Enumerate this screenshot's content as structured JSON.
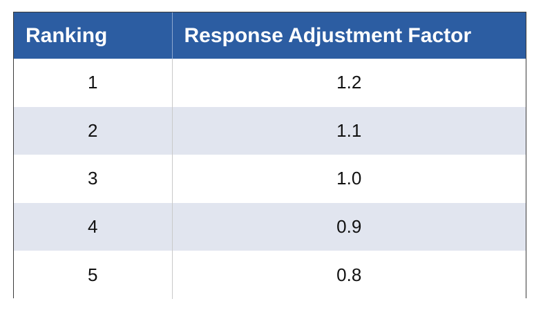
{
  "table": {
    "headers": [
      "Ranking",
      "Response Adjustment Factor"
    ],
    "rows": [
      [
        "1",
        "1.2"
      ],
      [
        "2",
        "1.1"
      ],
      [
        "3",
        "1.0"
      ],
      [
        "4",
        "0.9"
      ],
      [
        "5",
        "0.8"
      ]
    ]
  },
  "colors": {
    "header_bg": "#2c5da2",
    "header_text": "#ffffff",
    "stripe_bg": "#e1e5ef"
  }
}
